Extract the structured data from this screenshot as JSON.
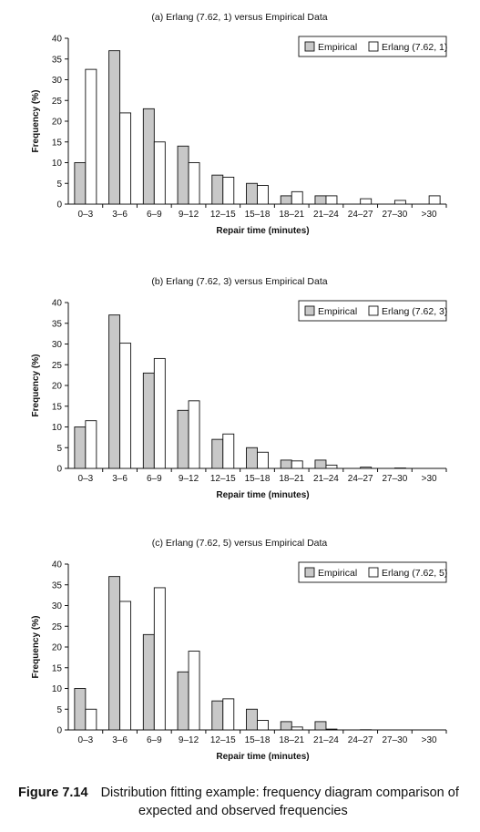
{
  "chart_data": [
    {
      "type": "bar",
      "title": "(a) Erlang (7.62, 1) versus Empirical Data",
      "xlabel": "Repair time (minutes)",
      "ylabel": "Frequency (%)",
      "ylim": [
        0,
        40
      ],
      "yticks": [
        "0",
        "5",
        "10",
        "15",
        "20",
        "25",
        "30",
        "35",
        "40"
      ],
      "categories": [
        "0–3",
        "3–6",
        "6–9",
        "9–12",
        "12–15",
        "15–18",
        "18–21",
        "21–24",
        "24–27",
        "27–30",
        ">30"
      ],
      "legend_position": "top-right",
      "series": [
        {
          "name": "Empirical",
          "color": "#c8c8c8",
          "values": [
            10,
            37,
            23,
            14,
            7,
            5,
            2,
            2,
            0,
            0,
            0
          ]
        },
        {
          "name": "Erlang (7.62, 1)",
          "color": "#ffffff",
          "values": [
            32.5,
            22,
            15,
            10,
            6.5,
            4.5,
            3,
            2,
            1.3,
            0.9,
            2
          ]
        }
      ]
    },
    {
      "type": "bar",
      "title": "(b) Erlang (7.62, 3) versus Empirical Data",
      "xlabel": "Repair time (minutes)",
      "ylabel": "Frequency (%)",
      "ylim": [
        0,
        40
      ],
      "yticks": [
        "0",
        "5",
        "10",
        "15",
        "20",
        "25",
        "30",
        "35",
        "40"
      ],
      "categories": [
        "0–3",
        "3–6",
        "6–9",
        "9–12",
        "12–15",
        "15–18",
        "18–21",
        "21–24",
        "24–27",
        "27–30",
        ">30"
      ],
      "legend_position": "top-right",
      "series": [
        {
          "name": "Empirical",
          "color": "#c8c8c8",
          "values": [
            10,
            37,
            23,
            14,
            7,
            5,
            2,
            2,
            0,
            0,
            0
          ]
        },
        {
          "name": "Erlang (7.62, 3)",
          "color": "#ffffff",
          "values": [
            11.5,
            30.2,
            26.5,
            16.3,
            8.3,
            3.9,
            1.8,
            0.8,
            0.3,
            0.1,
            0
          ]
        }
      ]
    },
    {
      "type": "bar",
      "title": "(c) Erlang (7.62, 5) versus Empirical Data",
      "xlabel": "Repair time (minutes)",
      "ylabel": "Frequency (%)",
      "ylim": [
        0,
        40
      ],
      "yticks": [
        "0",
        "5",
        "10",
        "15",
        "20",
        "25",
        "30",
        "35",
        "40"
      ],
      "categories": [
        "0–3",
        "3–6",
        "6–9",
        "9–12",
        "12–15",
        "15–18",
        "18–21",
        "21–24",
        "24–27",
        "27–30",
        ">30"
      ],
      "legend_position": "top-right",
      "series": [
        {
          "name": "Empirical",
          "color": "#c8c8c8",
          "values": [
            10,
            37,
            23,
            14,
            7,
            5,
            2,
            2,
            0,
            0,
            0
          ]
        },
        {
          "name": "Erlang (7.62, 5)",
          "color": "#ffffff",
          "values": [
            5,
            31,
            34.3,
            19,
            7.5,
            2.3,
            0.7,
            0.2,
            0.05,
            0,
            0
          ]
        }
      ]
    }
  ],
  "caption": {
    "label": "Figure 7.14",
    "line1": "Distribution fitting example: frequency diagram comparison of",
    "line2": "expected and observed frequencies"
  }
}
